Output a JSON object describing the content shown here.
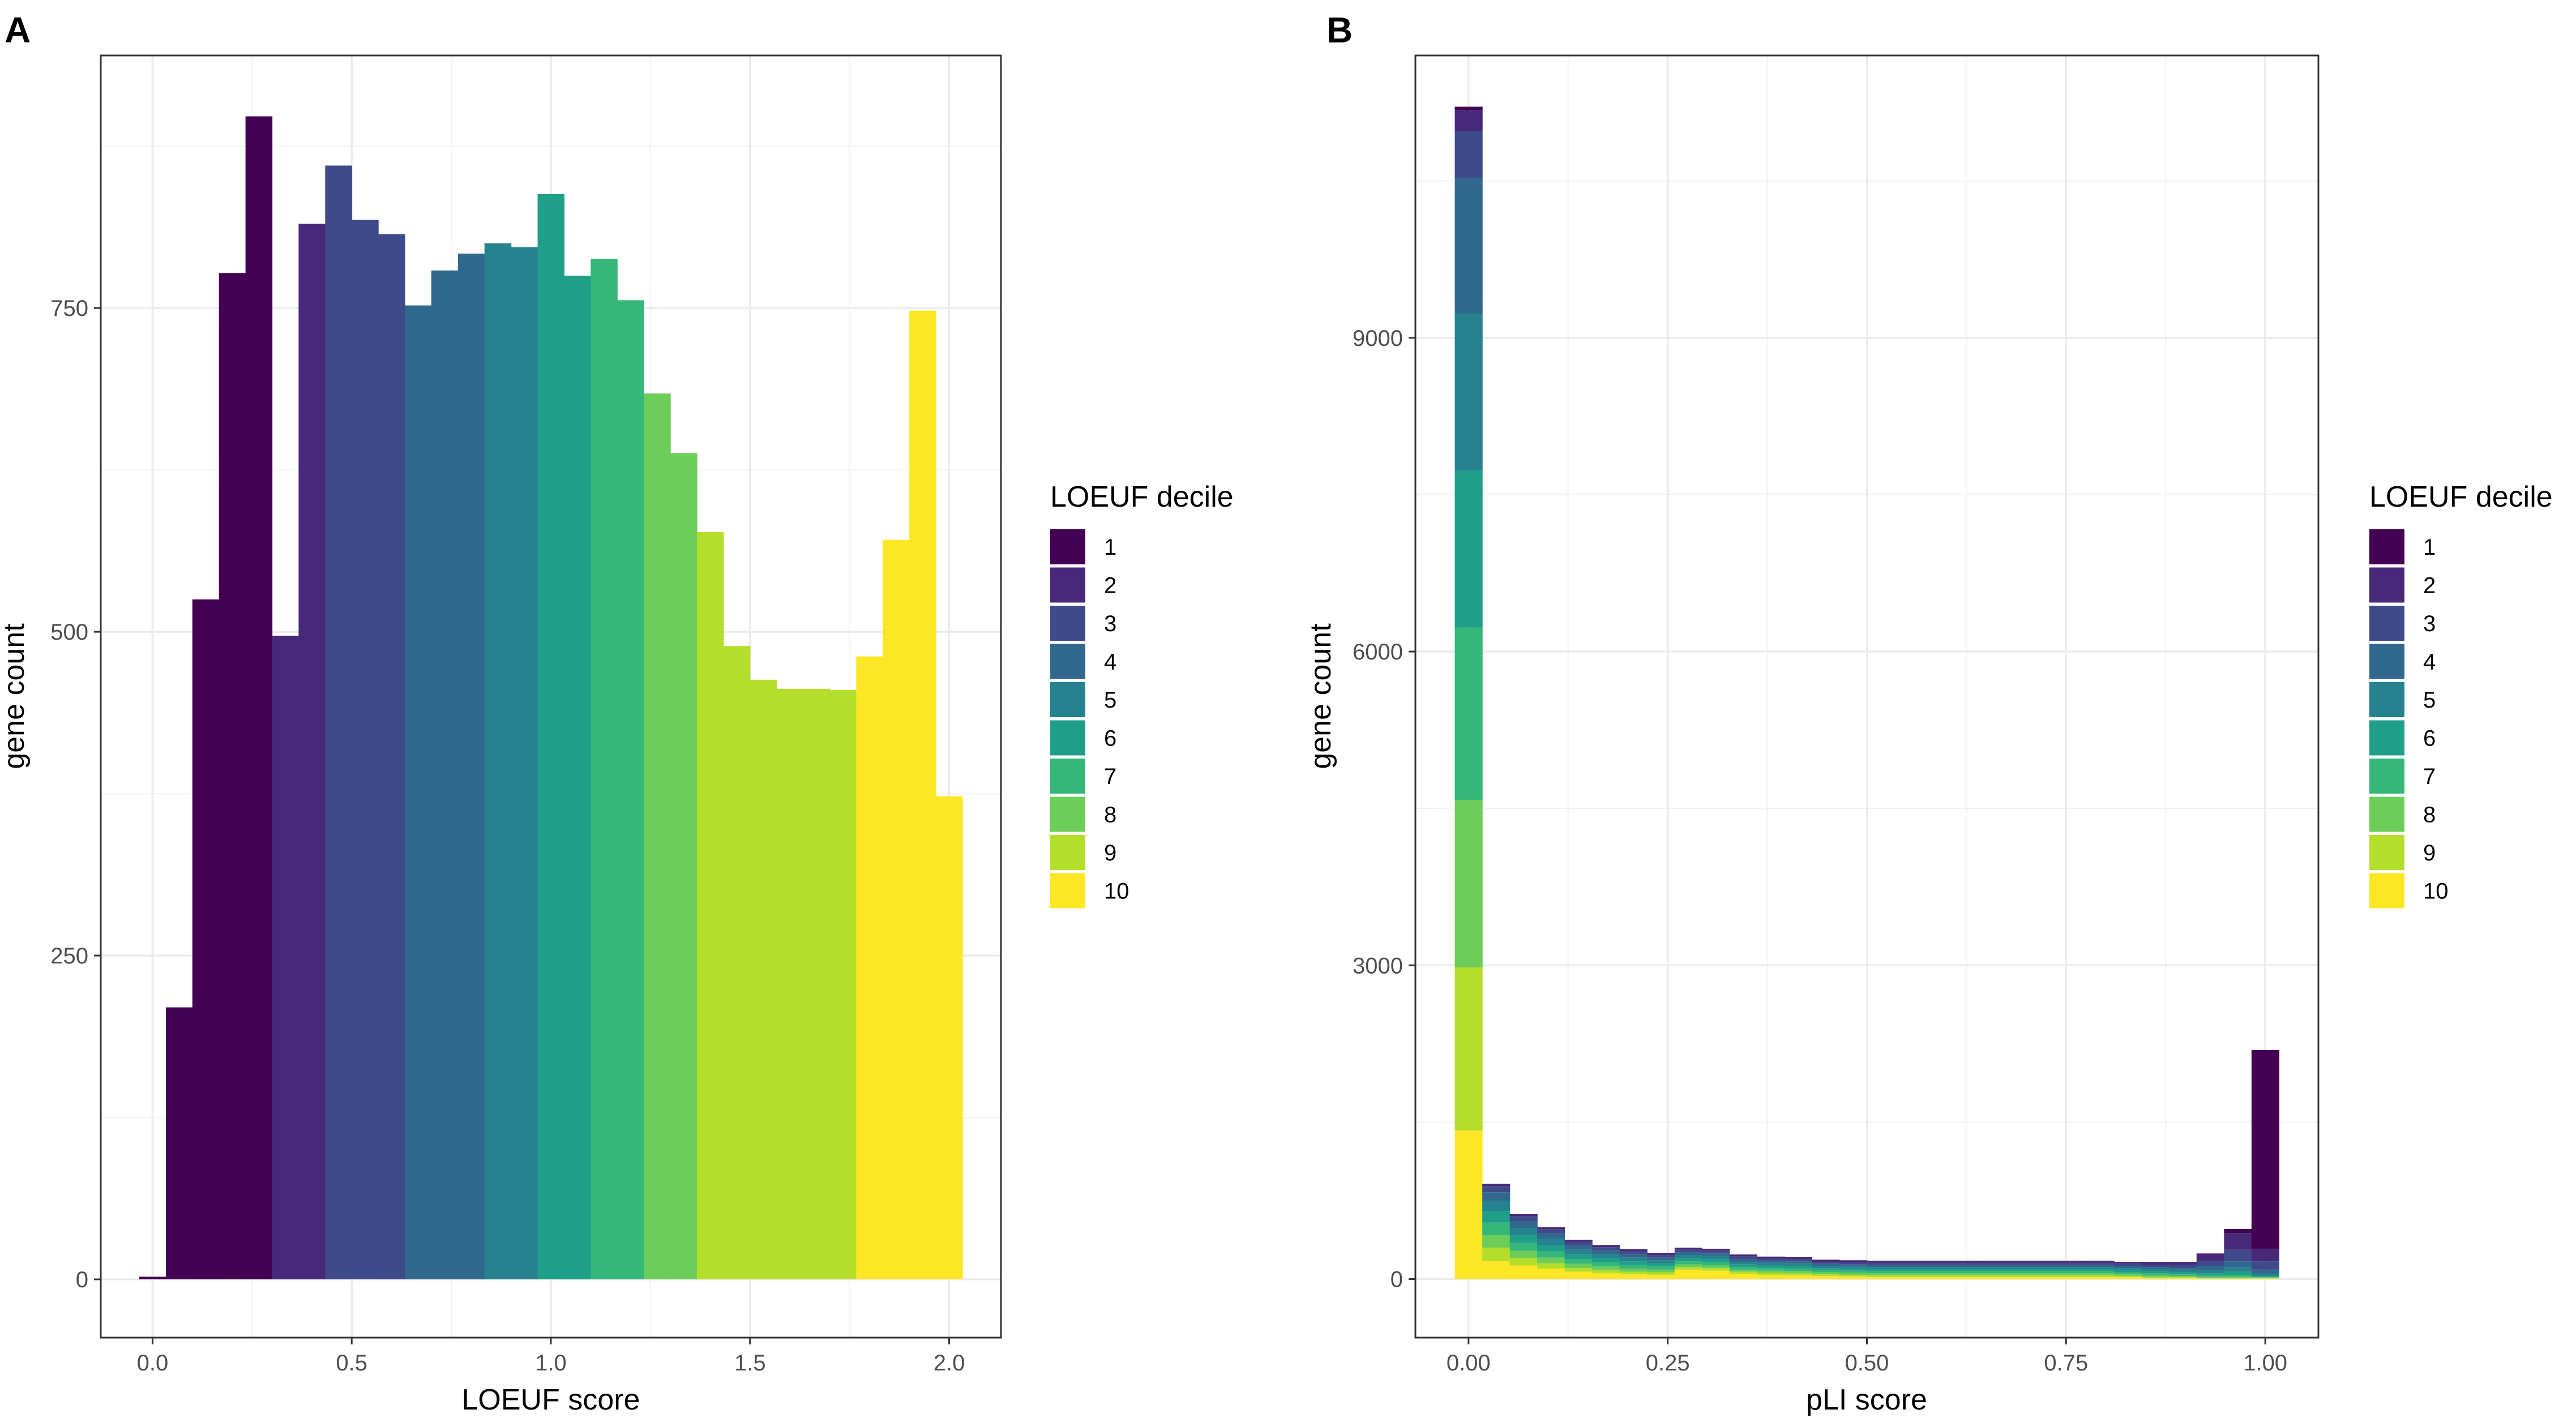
{
  "chart_data": [
    {
      "panel": "A",
      "type": "bar",
      "subtype": "stacked-histogram",
      "xlabel": "LOEUF score",
      "ylabel": "gene count",
      "xlim": [
        -0.13,
        2.13
      ],
      "ylim": [
        -45,
        945
      ],
      "x_ticks": [
        0.0,
        0.5,
        1.0,
        1.5,
        2.0
      ],
      "x_tick_labels": [
        "0.0",
        "0.5",
        "1.0",
        "1.5",
        "2.0"
      ],
      "y_ticks": [
        0,
        250,
        500,
        750
      ],
      "y_tick_labels": [
        "0",
        "250",
        "500",
        "750"
      ],
      "bin_width": 0.0667,
      "bin_centers": [
        0.0,
        0.0667,
        0.1333,
        0.2,
        0.2667,
        0.3333,
        0.4,
        0.4667,
        0.5333,
        0.6,
        0.6667,
        0.7333,
        0.8,
        0.8667,
        0.9333,
        1.0,
        1.0667,
        1.1333,
        1.2,
        1.2667,
        1.3333,
        1.4,
        1.4667,
        1.5333,
        1.6,
        1.6667,
        1.7333,
        1.8,
        1.8667,
        1.9333,
        2.0
      ],
      "series": [
        {
          "name": "1",
          "values": [
            2,
            210,
            525,
            777,
            898,
            0,
            0,
            0,
            0,
            0,
            0,
            0,
            0,
            0,
            0,
            0,
            0,
            0,
            0,
            0,
            0,
            0,
            0,
            0,
            0,
            0,
            0,
            0,
            0,
            0,
            0
          ]
        },
        {
          "name": "2",
          "values": [
            0,
            0,
            0,
            0,
            0,
            497,
            815,
            0,
            0,
            0,
            0,
            0,
            0,
            0,
            0,
            0,
            0,
            0,
            0,
            0,
            0,
            0,
            0,
            0,
            0,
            0,
            0,
            0,
            0,
            0,
            0
          ]
        },
        {
          "name": "3",
          "values": [
            0,
            0,
            0,
            0,
            0,
            0,
            0,
            860,
            818,
            807,
            0,
            0,
            0,
            0,
            0,
            0,
            0,
            0,
            0,
            0,
            0,
            0,
            0,
            0,
            0,
            0,
            0,
            0,
            0,
            0,
            0
          ]
        },
        {
          "name": "4",
          "values": [
            0,
            0,
            0,
            0,
            0,
            0,
            0,
            0,
            0,
            0,
            752,
            779,
            792,
            0,
            0,
            0,
            0,
            0,
            0,
            0,
            0,
            0,
            0,
            0,
            0,
            0,
            0,
            0,
            0,
            0,
            0
          ]
        },
        {
          "name": "5",
          "values": [
            0,
            0,
            0,
            0,
            0,
            0,
            0,
            0,
            0,
            0,
            0,
            0,
            0,
            800,
            797,
            0,
            0,
            0,
            0,
            0,
            0,
            0,
            0,
            0,
            0,
            0,
            0,
            0,
            0,
            0,
            0
          ]
        },
        {
          "name": "6",
          "values": [
            0,
            0,
            0,
            0,
            0,
            0,
            0,
            0,
            0,
            0,
            0,
            0,
            0,
            0,
            0,
            838,
            775,
            0,
            0,
            0,
            0,
            0,
            0,
            0,
            0,
            0,
            0,
            0,
            0,
            0,
            0
          ]
        },
        {
          "name": "7",
          "values": [
            0,
            0,
            0,
            0,
            0,
            0,
            0,
            0,
            0,
            0,
            0,
            0,
            0,
            0,
            0,
            0,
            0,
            788,
            756,
            0,
            0,
            0,
            0,
            0,
            0,
            0,
            0,
            0,
            0,
            0,
            0
          ]
        },
        {
          "name": "8",
          "values": [
            0,
            0,
            0,
            0,
            0,
            0,
            0,
            0,
            0,
            0,
            0,
            0,
            0,
            0,
            0,
            0,
            0,
            0,
            0,
            684,
            638,
            0,
            0,
            0,
            0,
            0,
            0,
            0,
            0,
            0,
            0
          ]
        },
        {
          "name": "9",
          "values": [
            0,
            0,
            0,
            0,
            0,
            0,
            0,
            0,
            0,
            0,
            0,
            0,
            0,
            0,
            0,
            0,
            0,
            0,
            0,
            0,
            0,
            577,
            489,
            463,
            456,
            456,
            455,
            0,
            0,
            0,
            0
          ]
        },
        {
          "name": "10",
          "values": [
            0,
            0,
            0,
            0,
            0,
            0,
            0,
            0,
            0,
            0,
            0,
            0,
            0,
            0,
            0,
            0,
            0,
            0,
            0,
            0,
            0,
            0,
            0,
            0,
            0,
            0,
            0,
            481,
            571,
            748,
            373
          ]
        }
      ],
      "legend": {
        "title": "LOEUF decile",
        "position": "right"
      },
      "grid": true
    },
    {
      "panel": "B",
      "type": "bar",
      "subtype": "stacked-histogram",
      "xlabel": "pLI score",
      "ylabel": "gene count",
      "xlim": [
        -0.0667,
        1.0667
      ],
      "ylim": [
        -560,
        11700
      ],
      "x_ticks": [
        0.0,
        0.25,
        0.5,
        0.75,
        1.0
      ],
      "x_tick_labels": [
        "0.00",
        "0.25",
        "0.50",
        "0.75",
        "1.00"
      ],
      "y_ticks": [
        0,
        3000,
        6000,
        9000
      ],
      "y_tick_labels": [
        "0",
        "3000",
        "6000",
        "9000"
      ],
      "bin_width": 0.0345,
      "bin_centers": [
        0.0,
        0.0345,
        0.069,
        0.1034,
        0.1379,
        0.1724,
        0.2069,
        0.2414,
        0.2759,
        0.3103,
        0.3448,
        0.3793,
        0.4138,
        0.4483,
        0.4828,
        0.5172,
        0.5517,
        0.5862,
        0.6207,
        0.6552,
        0.6897,
        0.7241,
        0.7586,
        0.7931,
        0.8276,
        0.8621,
        0.8966,
        0.931,
        0.9655,
        1.0
      ],
      "series": [
        {
          "name": "1",
          "values": [
            30,
            0,
            0,
            0,
            0,
            0,
            0,
            0,
            0,
            0,
            0,
            0,
            0,
            0,
            0,
            0,
            0,
            0,
            0,
            0,
            0,
            0,
            0,
            0,
            0,
            0,
            0,
            0,
            40,
            1900
          ]
        },
        {
          "name": "2",
          "values": [
            200,
            20,
            20,
            20,
            20,
            20,
            20,
            20,
            20,
            20,
            20,
            20,
            20,
            20,
            20,
            20,
            20,
            20,
            20,
            20,
            20,
            20,
            20,
            20,
            20,
            30,
            30,
            70,
            160,
            120
          ]
        },
        {
          "name": "3",
          "values": [
            450,
            60,
            50,
            40,
            35,
            30,
            30,
            25,
            25,
            25,
            25,
            20,
            20,
            20,
            20,
            20,
            20,
            20,
            20,
            20,
            20,
            20,
            20,
            20,
            20,
            20,
            30,
            50,
            110,
            80
          ]
        },
        {
          "name": "4",
          "values": [
            1300,
            80,
            60,
            50,
            40,
            35,
            30,
            25,
            25,
            25,
            25,
            20,
            20,
            20,
            20,
            20,
            20,
            20,
            20,
            20,
            20,
            20,
            20,
            20,
            20,
            20,
            20,
            40,
            60,
            40
          ]
        },
        {
          "name": "5",
          "values": [
            1500,
            100,
            70,
            60,
            45,
            40,
            35,
            30,
            30,
            30,
            25,
            25,
            25,
            20,
            20,
            20,
            20,
            20,
            20,
            20,
            20,
            20,
            20,
            20,
            20,
            20,
            20,
            30,
            40,
            20
          ]
        },
        {
          "name": "6",
          "values": [
            1500,
            110,
            75,
            60,
            45,
            40,
            35,
            30,
            30,
            30,
            25,
            25,
            25,
            20,
            20,
            20,
            20,
            20,
            20,
            20,
            20,
            20,
            20,
            20,
            20,
            20,
            20,
            20,
            30,
            10
          ]
        },
        {
          "name": "7",
          "values": [
            1650,
            120,
            75,
            60,
            45,
            40,
            35,
            30,
            30,
            30,
            25,
            25,
            25,
            20,
            20,
            20,
            20,
            20,
            20,
            20,
            20,
            20,
            20,
            20,
            20,
            20,
            15,
            15,
            20,
            5
          ]
        },
        {
          "name": "8",
          "values": [
            1600,
            120,
            70,
            55,
            40,
            35,
            30,
            25,
            25,
            25,
            20,
            20,
            20,
            20,
            20,
            20,
            20,
            20,
            20,
            20,
            20,
            20,
            20,
            20,
            15,
            15,
            10,
            10,
            10,
            5
          ]
        },
        {
          "name": "9",
          "values": [
            1560,
            130,
            70,
            50,
            35,
            30,
            25,
            25,
            25,
            25,
            20,
            20,
            20,
            15,
            15,
            15,
            15,
            15,
            15,
            15,
            15,
            15,
            15,
            15,
            10,
            10,
            10,
            5,
            5,
            5
          ]
        },
        {
          "name": "10",
          "values": [
            1420,
            170,
            130,
            100,
            70,
            55,
            45,
            40,
            90,
            80,
            50,
            40,
            35,
            30,
            25,
            20,
            20,
            20,
            20,
            20,
            20,
            20,
            20,
            20,
            20,
            10,
            10,
            5,
            5,
            5
          ]
        }
      ],
      "legend": {
        "title": "LOEUF decile",
        "position": "right"
      },
      "grid": true
    }
  ],
  "deciles": [
    {
      "label": "1",
      "color": "#440154"
    },
    {
      "label": "2",
      "color": "#482878"
    },
    {
      "label": "3",
      "color": "#3E4A89"
    },
    {
      "label": "4",
      "color": "#31688E"
    },
    {
      "label": "5",
      "color": "#26828E"
    },
    {
      "label": "6",
      "color": "#1F9E89"
    },
    {
      "label": "7",
      "color": "#35B779"
    },
    {
      "label": "8",
      "color": "#6DCD59"
    },
    {
      "label": "9",
      "color": "#B4DE2C"
    },
    {
      "label": "10",
      "color": "#FDE725"
    }
  ],
  "panels": {
    "a": {
      "letter": "A",
      "legend_title": "LOEUF decile",
      "xlabel": "LOEUF score",
      "ylabel": "gene count"
    },
    "b": {
      "letter": "B",
      "legend_title": "LOEUF decile",
      "xlabel": "pLI score",
      "ylabel": "gene count"
    }
  }
}
